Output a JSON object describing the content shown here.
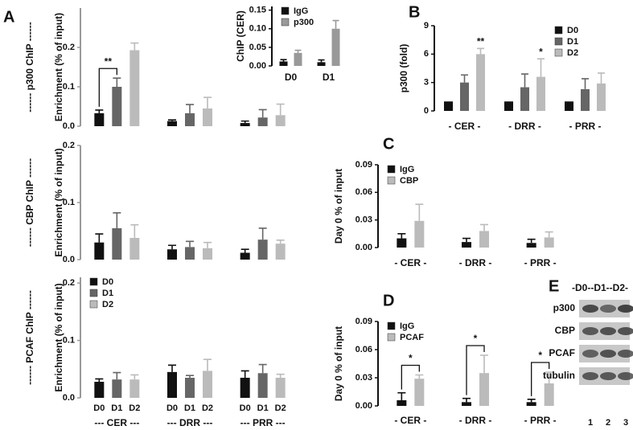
{
  "chart_data": [
    {
      "type": "bar",
      "panel": "A",
      "side_label": "------ p300 ChIP ------",
      "ylabel": "Enrichment (% of input)",
      "categories": [
        null,
        null,
        null
      ],
      "series": [
        {
          "color": "#111111",
          "values": [
            0.033,
            0.013,
            0.008
          ],
          "errors": [
            0.008,
            0.003,
            0.005
          ]
        },
        {
          "color": "#666666",
          "values": [
            0.1,
            0.033,
            0.022
          ],
          "errors": [
            0.022,
            0.022,
            0.02
          ]
        },
        {
          "color": "#bbbbbb",
          "values": [
            0.193,
            0.045,
            0.028
          ],
          "errors": [
            0.018,
            0.028,
            0.028
          ]
        }
      ],
      "ylim": [
        0,
        0.3
      ],
      "yticks": [
        {
          "value": 0,
          "label": "0.0"
        },
        0.1,
        0.2
      ],
      "significance": [
        {
          "label": "**",
          "category": 0,
          "series": [
            0,
            1
          ]
        }
      ]
    },
    {
      "type": "bar",
      "ylabel": "ChIP (CER)",
      "categories": [
        "D0",
        "D1"
      ],
      "series": [
        {
          "name": "IgG",
          "color": "#111111",
          "values": [
            0.012,
            0.01
          ],
          "errors": [
            0.005,
            0.006
          ]
        },
        {
          "name": "p300",
          "color": "#999999",
          "values": [
            0.035,
            0.1
          ],
          "errors": [
            0.007,
            0.022
          ]
        }
      ],
      "ylim": [
        0,
        0.16
      ],
      "yticks": [
        {
          "value": 0,
          "label": "0.00"
        },
        {
          "value": 0.05,
          "label": "0.05"
        },
        {
          "value": 0.1,
          "label": "0.10"
        },
        {
          "value": 0.15,
          "label": "0.15"
        }
      ],
      "legend": "upper-left"
    },
    {
      "type": "bar",
      "side_label": "------ CBP ChIP ------",
      "ylabel": "Enrichment (% of input)",
      "categories": [
        null,
        null,
        null
      ],
      "series": [
        {
          "color": "#111111",
          "values": [
            0.03,
            0.018,
            0.012
          ],
          "errors": [
            0.015,
            0.007,
            0.006
          ]
        },
        {
          "color": "#666666",
          "values": [
            0.055,
            0.022,
            0.035
          ],
          "errors": [
            0.027,
            0.01,
            0.02
          ]
        },
        {
          "color": "#bbbbbb",
          "values": [
            0.038,
            0.02,
            0.028
          ],
          "errors": [
            0.023,
            0.01,
            0.006
          ]
        }
      ],
      "ylim": [
        0,
        0.2
      ],
      "yticks": [
        {
          "value": 0,
          "label": "0.0"
        },
        0.1,
        0.2
      ]
    },
    {
      "type": "bar",
      "side_label": "------ PCAF ChIP ------",
      "ylabel": "Enrichment (% of input)",
      "categories": [
        "--- CER ---",
        "--- DRR ---",
        "--- PRR ---"
      ],
      "series": [
        {
          "name": "D0",
          "color": "#111111",
          "values": [
            0.028,
            0.045,
            0.035
          ],
          "errors": [
            0.005,
            0.012,
            0.012
          ]
        },
        {
          "name": "D1",
          "color": "#666666",
          "values": [
            0.032,
            0.035,
            0.043
          ],
          "errors": [
            0.012,
            0.004,
            0.015
          ]
        },
        {
          "name": "D2",
          "color": "#bbbbbb",
          "values": [
            0.032,
            0.047,
            0.035
          ],
          "errors": [
            0.008,
            0.02,
            0.006
          ]
        }
      ],
      "ylim": [
        0,
        0.21
      ],
      "yticks": [
        {
          "value": 0,
          "label": "0.0"
        },
        0.1,
        0.2
      ],
      "legend": "upper-left",
      "bar_labels": true
    },
    {
      "type": "bar",
      "panel": "B",
      "ylabel": "p300  (fold)",
      "categories": [
        "- CER -",
        "- DRR -",
        "- PRR -"
      ],
      "series": [
        {
          "name": "D0",
          "color": "#111111",
          "values": [
            1,
            1,
            1
          ]
        },
        {
          "name": "D1",
          "color": "#666666",
          "values": [
            3,
            2.5,
            2.3
          ],
          "errors": [
            0.8,
            1.4,
            1.1
          ]
        },
        {
          "name": "D2",
          "color": "#bbbbbb",
          "values": [
            6,
            3.6,
            2.9
          ],
          "errors": [
            0.6,
            1.9,
            1.1
          ]
        }
      ],
      "ylim": [
        0,
        9
      ],
      "yticks": [
        0,
        3,
        6,
        9
      ],
      "legend": "upper-right",
      "significance": [
        {
          "label": "**",
          "category": 0,
          "series": [
            2
          ]
        },
        {
          "label": "*",
          "category": 1,
          "series": [
            2
          ]
        }
      ]
    },
    {
      "type": "bar",
      "panel": "C",
      "ylabel": "Day 0 % of input",
      "categories": [
        "- CER -",
        "- DRR -",
        "- PRR -"
      ],
      "series": [
        {
          "name": "IgG",
          "color": "#111111",
          "values": [
            0.01,
            0.006,
            0.005
          ],
          "errors": [
            0.005,
            0.004,
            0.004
          ]
        },
        {
          "name": "CBP",
          "color": "#bbbbbb",
          "values": [
            0.029,
            0.018,
            0.011
          ],
          "errors": [
            0.018,
            0.007,
            0.006
          ]
        }
      ],
      "ylim": [
        0,
        0.09
      ],
      "yticks": [
        {
          "value": 0,
          "label": "0.00"
        },
        {
          "value": 0.03,
          "label": "0.03"
        },
        {
          "value": 0.06,
          "label": "0.06"
        },
        {
          "value": 0.09,
          "label": "0.09"
        }
      ],
      "legend": "upper-left"
    },
    {
      "type": "bar",
      "panel": "D",
      "ylabel": "Day 0 % of input",
      "categories": [
        "- CER -",
        "- DRR -",
        "- PRR -"
      ],
      "series": [
        {
          "name": "IgG",
          "color": "#111111",
          "values": [
            0.006,
            0.004,
            0.004
          ],
          "errors": [
            0.008,
            0.004,
            0.003
          ]
        },
        {
          "name": "PCAF",
          "color": "#bbbbbb",
          "values": [
            0.029,
            0.035,
            0.024
          ],
          "errors": [
            0.004,
            0.019,
            0.012
          ]
        }
      ],
      "ylim": [
        0,
        0.09
      ],
      "yticks": [
        {
          "value": 0,
          "label": "0.00"
        },
        {
          "value": 0.03,
          "label": "0.03"
        },
        {
          "value": 0.06,
          "label": "0.06"
        },
        {
          "value": 0.09,
          "label": "0.09"
        }
      ],
      "legend": "upper-left",
      "significance": [
        {
          "label": "*",
          "category": 0,
          "series": [
            0,
            1
          ]
        },
        {
          "label": "*",
          "category": 1,
          "series": [
            0,
            1
          ]
        },
        {
          "label": "*",
          "category": 2,
          "series": [
            0,
            1
          ]
        }
      ]
    }
  ],
  "blot": {
    "panel": "E",
    "header": "-D0--D1--D2-",
    "rows": [
      "p300",
      "CBP",
      "PCAF",
      "tubulin"
    ],
    "lanes": [
      "1",
      "2",
      "3"
    ]
  }
}
